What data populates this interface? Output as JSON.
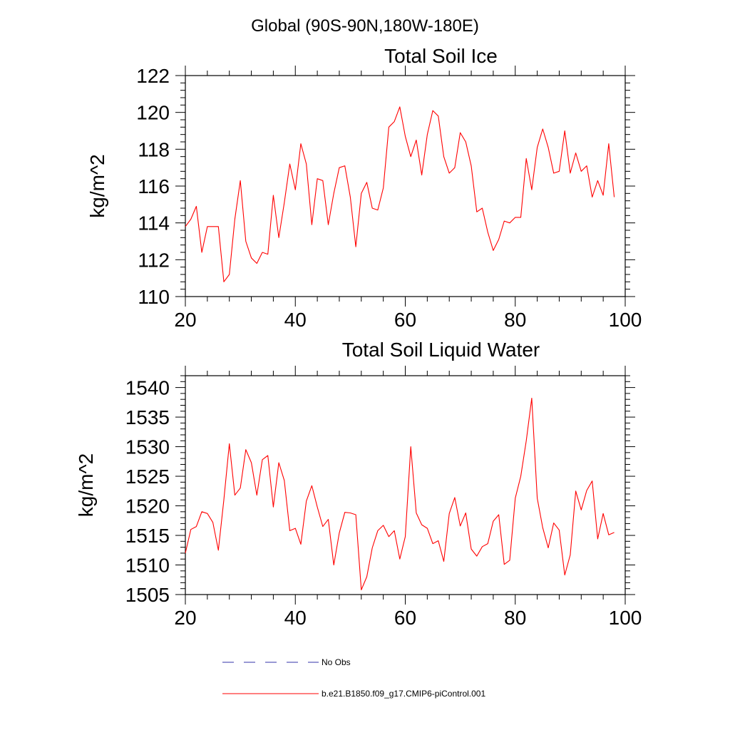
{
  "figure": {
    "title": "Global (90S-90N,180W-180E)"
  },
  "chart_data": [
    {
      "type": "line",
      "title": "Total Soil Ice",
      "xlabel": "",
      "ylabel": "kg/m^2",
      "xlim": [
        20,
        100
      ],
      "ylim": [
        110,
        122
      ],
      "xticks": [
        20,
        40,
        60,
        80,
        100
      ],
      "yticks": [
        110,
        112,
        114,
        116,
        118,
        120,
        122
      ],
      "grid": false,
      "series": [
        {
          "name": "b.e21.B1850.f09_g17.CMIP6-piControl.001",
          "color": "#ff0000",
          "x": [
            20,
            21,
            22,
            23,
            24,
            25,
            26,
            27,
            28,
            29,
            30,
            31,
            32,
            33,
            34,
            35,
            36,
            37,
            38,
            39,
            40,
            41,
            42,
            43,
            44,
            45,
            46,
            47,
            48,
            49,
            50,
            51,
            52,
            53,
            54,
            55,
            56,
            57,
            58,
            59,
            60,
            61,
            62,
            63,
            64,
            65,
            66,
            67,
            68,
            69,
            70,
            71,
            72,
            73,
            74,
            75,
            76,
            77,
            78,
            79,
            80,
            81,
            82,
            83,
            84,
            85,
            86,
            87,
            88,
            89,
            90,
            91,
            92,
            93,
            94,
            95,
            96,
            97,
            98
          ],
          "y": [
            113.8,
            114.2,
            114.9,
            112.4,
            113.8,
            113.8,
            113.8,
            110.8,
            111.2,
            114.2,
            116.3,
            113.0,
            112.1,
            111.8,
            112.4,
            112.3,
            115.5,
            113.2,
            115.1,
            117.2,
            115.8,
            118.3,
            117.2,
            113.9,
            116.4,
            116.3,
            113.9,
            115.6,
            117.0,
            117.1,
            115.4,
            112.7,
            115.6,
            116.2,
            114.8,
            114.7,
            115.9,
            119.2,
            119.5,
            120.3,
            118.7,
            117.6,
            118.5,
            116.6,
            118.8,
            120.1,
            119.8,
            117.6,
            116.7,
            117.0,
            118.9,
            118.4,
            117.1,
            114.6,
            114.8,
            113.5,
            112.5,
            113.1,
            114.1,
            114.0,
            114.3,
            114.3,
            117.5,
            115.8,
            118.1,
            119.1,
            118.1,
            116.7,
            116.8,
            119.0,
            116.7,
            117.8,
            116.8,
            117.1,
            115.4,
            116.3,
            115.5,
            118.3,
            115.4
          ]
        }
      ]
    },
    {
      "type": "line",
      "title": "Total Soil Liquid Water",
      "xlabel": "",
      "ylabel": "kg/m^2",
      "xlim": [
        20,
        100
      ],
      "ylim": [
        1505,
        1542
      ],
      "xticks": [
        20,
        40,
        60,
        80,
        100
      ],
      "yticks": [
        1505,
        1510,
        1515,
        1520,
        1525,
        1530,
        1535,
        1540
      ],
      "grid": false,
      "series": [
        {
          "name": "b.e21.B1850.f09_g17.CMIP6-piControl.001",
          "color": "#ff0000",
          "x": [
            20,
            21,
            22,
            23,
            24,
            25,
            26,
            27,
            28,
            29,
            30,
            31,
            32,
            33,
            34,
            35,
            36,
            37,
            38,
            39,
            40,
            41,
            42,
            43,
            44,
            45,
            46,
            47,
            48,
            49,
            50,
            51,
            52,
            53,
            54,
            55,
            56,
            57,
            58,
            59,
            60,
            61,
            62,
            63,
            64,
            65,
            66,
            67,
            68,
            69,
            70,
            71,
            72,
            73,
            74,
            75,
            76,
            77,
            78,
            79,
            80,
            81,
            82,
            83,
            84,
            85,
            86,
            87,
            88,
            89,
            90,
            91,
            92,
            93,
            94,
            95,
            96,
            97,
            98
          ],
          "y": [
            1512.0,
            1516.0,
            1516.5,
            1519.0,
            1518.7,
            1517.2,
            1512.5,
            1521.0,
            1530.5,
            1521.8,
            1523.0,
            1529.5,
            1527.3,
            1521.8,
            1527.8,
            1528.5,
            1519.8,
            1527.3,
            1524.3,
            1515.8,
            1516.2,
            1513.5,
            1520.8,
            1523.4,
            1519.8,
            1516.5,
            1517.7,
            1510.0,
            1515.4,
            1518.9,
            1518.8,
            1518.5,
            1505.8,
            1508.0,
            1512.9,
            1515.8,
            1516.7,
            1514.8,
            1515.8,
            1511.0,
            1514.8,
            1530.0,
            1518.8,
            1516.8,
            1516.2,
            1513.6,
            1514.1,
            1510.6,
            1518.7,
            1521.4,
            1516.6,
            1518.8,
            1512.7,
            1511.5,
            1513.1,
            1513.6,
            1517.4,
            1518.5,
            1510.1,
            1510.8,
            1521.3,
            1525.0,
            1531.0,
            1538.2,
            1521.3,
            1516.3,
            1512.9,
            1517.1,
            1515.9,
            1508.3,
            1511.7,
            1522.5,
            1519.3,
            1522.6,
            1524.2,
            1514.4,
            1518.7,
            1515.1,
            1515.5
          ]
        }
      ]
    }
  ],
  "legend": {
    "items": [
      {
        "label": "No Obs",
        "color": "#3333aa",
        "dash": true
      },
      {
        "label": "b.e21.B1850.f09_g17.CMIP6-piControl.001",
        "color": "#ff0000",
        "dash": false
      }
    ]
  }
}
